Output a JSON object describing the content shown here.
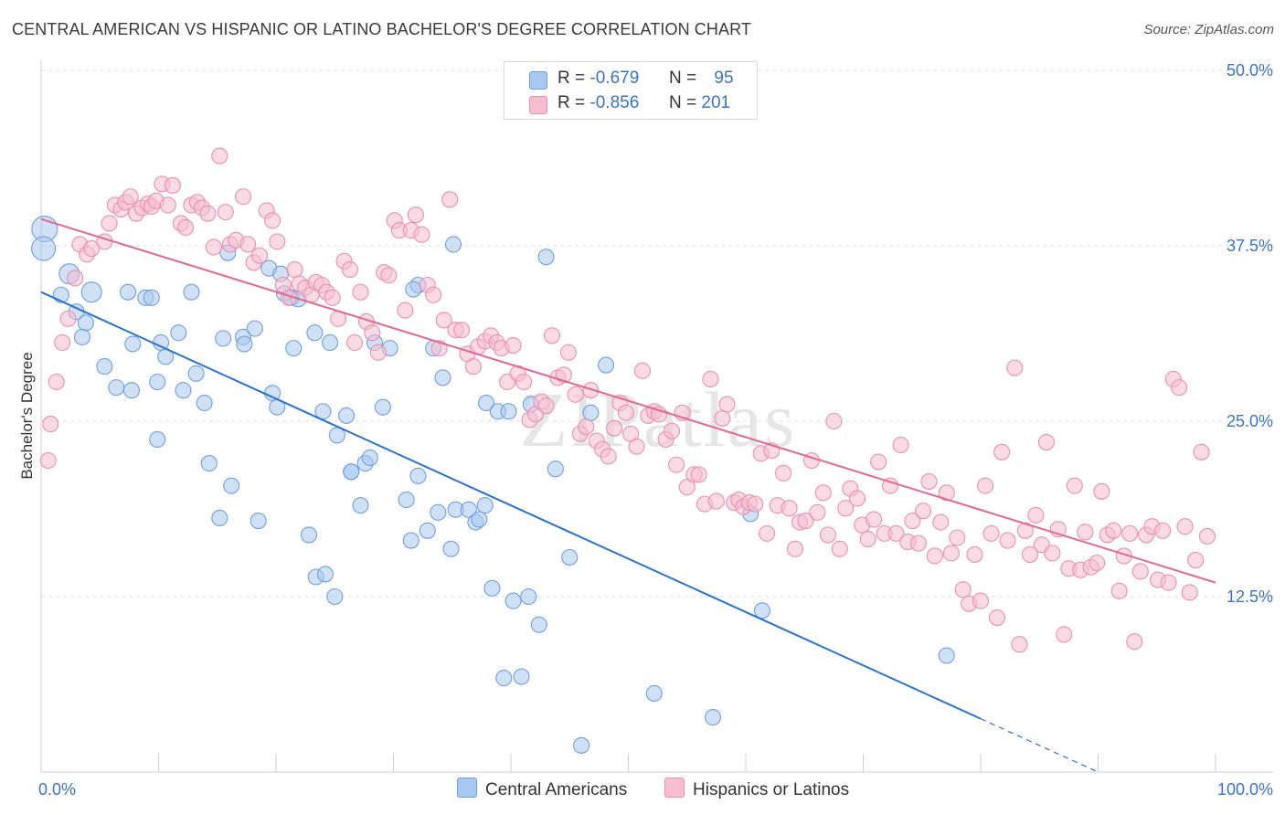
{
  "title": "CENTRAL AMERICAN VS HISPANIC OR LATINO BACHELOR'S DEGREE CORRELATION CHART",
  "source": "Source: ZipAtlas.com",
  "watermark": "ZIPatlas",
  "colors": {
    "blue_fill": "#a9c8ef",
    "blue_stroke": "#6f9fdc",
    "blue_line": "#2a72d0",
    "pink_fill": "#f6bed0",
    "pink_stroke": "#ea8fae",
    "pink_line": "#e2688f",
    "tick_text": "#3b73c6",
    "grid": "#dddddd"
  },
  "legend": {
    "rows": [
      {
        "r_label": "R =",
        "r_value": "-0.679",
        "n_label": "N =",
        "n_value": "95"
      },
      {
        "r_label": "R =",
        "r_value": "-0.856",
        "n_label": "N =",
        "n_value": "201"
      }
    ]
  },
  "bottom_legend": [
    "Central Americans",
    "Hispanics or Latinos"
  ],
  "chart_data": {
    "type": "scatter",
    "title": "CENTRAL AMERICAN VS HISPANIC OR LATINO BACHELOR'S DEGREE CORRELATION CHART",
    "xlabel": "",
    "ylabel": "Bachelor's Degree",
    "xlim": [
      0,
      100
    ],
    "ylim": [
      0,
      50
    ],
    "x_tick_labels": [
      "0.0%",
      "100.0%"
    ],
    "y_ticks": [
      12.5,
      25.0,
      37.5,
      50.0
    ],
    "y_tick_labels": [
      "12.5%",
      "25.0%",
      "37.5%",
      "50.0%"
    ],
    "grid": true,
    "legend_position": "top-center",
    "series": [
      {
        "name": "Central Americans",
        "r": -0.679,
        "n": 95,
        "trend": {
          "x0": 0,
          "y0": 34.2,
          "x1": 80,
          "y1": 3.8,
          "dash_to_x": 90
        },
        "points": [
          [
            0.3,
            38.7
          ],
          [
            0.2,
            37.3
          ],
          [
            2.4,
            35.5
          ],
          [
            4.3,
            34.2
          ],
          [
            1.7,
            34.0
          ],
          [
            3.0,
            32.8
          ],
          [
            3.8,
            32.0
          ],
          [
            3.5,
            31.0
          ],
          [
            7.4,
            34.2
          ],
          [
            8.9,
            33.8
          ],
          [
            9.4,
            33.8
          ],
          [
            12.8,
            34.2
          ],
          [
            11.7,
            31.3
          ],
          [
            7.8,
            30.5
          ],
          [
            10.2,
            30.6
          ],
          [
            10.6,
            29.6
          ],
          [
            5.4,
            28.9
          ],
          [
            13.2,
            28.4
          ],
          [
            7.7,
            27.2
          ],
          [
            6.4,
            27.4
          ],
          [
            9.9,
            27.8
          ],
          [
            12.1,
            27.2
          ],
          [
            13.9,
            26.3
          ],
          [
            9.9,
            23.7
          ],
          [
            14.3,
            22.0
          ],
          [
            16.2,
            20.4
          ],
          [
            15.2,
            18.1
          ],
          [
            18.5,
            17.9
          ],
          [
            15.5,
            30.9
          ],
          [
            17.2,
            31.0
          ],
          [
            18.2,
            31.6
          ],
          [
            17.3,
            30.5
          ],
          [
            19.4,
            35.9
          ],
          [
            20.4,
            35.5
          ],
          [
            20.7,
            34.1
          ],
          [
            21.3,
            33.8
          ],
          [
            15.9,
            37.0
          ],
          [
            19.7,
            27.0
          ],
          [
            20.1,
            26.0
          ],
          [
            21.5,
            30.2
          ],
          [
            21.9,
            33.7
          ],
          [
            23.3,
            31.3
          ],
          [
            24.6,
            30.6
          ],
          [
            22.8,
            16.9
          ],
          [
            23.4,
            13.9
          ],
          [
            24.2,
            14.1
          ],
          [
            25.0,
            12.5
          ],
          [
            24.0,
            25.7
          ],
          [
            25.2,
            24.0
          ],
          [
            26.0,
            25.4
          ],
          [
            26.4,
            21.4
          ],
          [
            27.2,
            19.0
          ],
          [
            27.6,
            22.0
          ],
          [
            28.0,
            22.4
          ],
          [
            29.1,
            26.0
          ],
          [
            28.4,
            30.6
          ],
          [
            29.7,
            30.2
          ],
          [
            31.1,
            19.4
          ],
          [
            31.5,
            16.5
          ],
          [
            32.1,
            21.1
          ],
          [
            32.1,
            34.7
          ],
          [
            32.9,
            17.2
          ],
          [
            33.4,
            30.2
          ],
          [
            33.8,
            18.5
          ],
          [
            34.2,
            28.1
          ],
          [
            34.9,
            15.9
          ],
          [
            35.3,
            18.7
          ],
          [
            36.4,
            18.7
          ],
          [
            37.0,
            17.8
          ],
          [
            37.3,
            18.0
          ],
          [
            37.8,
            19.0
          ],
          [
            35.1,
            37.6
          ],
          [
            37.9,
            26.3
          ],
          [
            38.4,
            13.1
          ],
          [
            38.9,
            25.7
          ],
          [
            39.8,
            25.7
          ],
          [
            39.4,
            6.7
          ],
          [
            40.2,
            12.2
          ],
          [
            40.9,
            6.8
          ],
          [
            41.5,
            12.5
          ],
          [
            41.7,
            26.2
          ],
          [
            42.4,
            10.5
          ],
          [
            43.0,
            36.7
          ],
          [
            43.8,
            21.6
          ],
          [
            45.0,
            15.3
          ],
          [
            46.0,
            1.9
          ],
          [
            48.1,
            29.0
          ],
          [
            52.2,
            5.6
          ],
          [
            57.2,
            3.9
          ],
          [
            60.4,
            18.4
          ],
          [
            61.4,
            11.5
          ],
          [
            77.1,
            8.3
          ],
          [
            46.8,
            25.6
          ],
          [
            31.7,
            34.4
          ],
          [
            26.4,
            21.4
          ]
        ]
      },
      {
        "name": "Hispanics or Latinos",
        "r": -0.856,
        "n": 201,
        "trend": {
          "x0": 0,
          "y0": 39.4,
          "x1": 100,
          "y1": 13.5
        },
        "points": [
          [
            0.6,
            22.2
          ],
          [
            0.8,
            24.8
          ],
          [
            1.3,
            27.8
          ],
          [
            1.8,
            30.6
          ],
          [
            2.3,
            32.3
          ],
          [
            2.9,
            35.2
          ],
          [
            3.3,
            37.6
          ],
          [
            3.9,
            36.9
          ],
          [
            4.3,
            37.3
          ],
          [
            5.4,
            37.8
          ],
          [
            5.8,
            39.1
          ],
          [
            6.3,
            40.4
          ],
          [
            6.8,
            40.1
          ],
          [
            7.2,
            40.6
          ],
          [
            7.6,
            41.0
          ],
          [
            8.1,
            39.8
          ],
          [
            8.6,
            40.2
          ],
          [
            9.1,
            40.5
          ],
          [
            9.4,
            40.3
          ],
          [
            9.8,
            40.7
          ],
          [
            10.3,
            41.9
          ],
          [
            10.8,
            40.4
          ],
          [
            11.2,
            41.8
          ],
          [
            11.9,
            39.1
          ],
          [
            12.3,
            38.8
          ],
          [
            12.8,
            40.4
          ],
          [
            13.3,
            40.6
          ],
          [
            13.7,
            40.2
          ],
          [
            14.2,
            39.8
          ],
          [
            14.7,
            37.4
          ],
          [
            15.2,
            43.9
          ],
          [
            15.7,
            39.9
          ],
          [
            16.1,
            37.6
          ],
          [
            16.6,
            37.9
          ],
          [
            17.2,
            41.0
          ],
          [
            17.6,
            37.6
          ],
          [
            18.1,
            36.3
          ],
          [
            18.6,
            36.8
          ],
          [
            19.2,
            40.0
          ],
          [
            19.7,
            39.3
          ],
          [
            20.1,
            37.8
          ],
          [
            20.6,
            34.7
          ],
          [
            21.1,
            33.8
          ],
          [
            21.6,
            35.8
          ],
          [
            22.0,
            34.8
          ],
          [
            22.5,
            34.5
          ],
          [
            23.0,
            34.0
          ],
          [
            23.4,
            34.9
          ],
          [
            23.9,
            34.7
          ],
          [
            24.3,
            34.2
          ],
          [
            24.8,
            33.8
          ],
          [
            25.3,
            32.3
          ],
          [
            25.8,
            36.4
          ],
          [
            26.3,
            35.8
          ],
          [
            26.7,
            30.6
          ],
          [
            27.2,
            34.2
          ],
          [
            27.7,
            32.1
          ],
          [
            28.2,
            31.3
          ],
          [
            28.7,
            29.9
          ],
          [
            29.2,
            35.6
          ],
          [
            29.6,
            35.4
          ],
          [
            30.1,
            39.3
          ],
          [
            30.5,
            38.6
          ],
          [
            31.0,
            32.9
          ],
          [
            31.5,
            38.6
          ],
          [
            31.9,
            39.7
          ],
          [
            32.4,
            38.3
          ],
          [
            32.9,
            34.7
          ],
          [
            33.4,
            34.0
          ],
          [
            33.9,
            30.2
          ],
          [
            34.3,
            32.2
          ],
          [
            34.8,
            40.8
          ],
          [
            35.3,
            31.5
          ],
          [
            35.8,
            31.5
          ],
          [
            36.3,
            29.8
          ],
          [
            36.8,
            28.9
          ],
          [
            37.2,
            30.3
          ],
          [
            37.8,
            30.7
          ],
          [
            38.3,
            31.1
          ],
          [
            38.8,
            30.6
          ],
          [
            39.2,
            30.2
          ],
          [
            39.7,
            27.8
          ],
          [
            40.2,
            30.4
          ],
          [
            40.6,
            28.4
          ],
          [
            41.1,
            27.8
          ],
          [
            41.6,
            25.1
          ],
          [
            42.1,
            25.5
          ],
          [
            42.6,
            26.4
          ],
          [
            43.0,
            26.1
          ],
          [
            43.5,
            31.1
          ],
          [
            44.0,
            28.1
          ],
          [
            44.5,
            28.3
          ],
          [
            44.9,
            29.9
          ],
          [
            45.5,
            26.9
          ],
          [
            45.9,
            24.1
          ],
          [
            46.4,
            24.6
          ],
          [
            46.8,
            27.2
          ],
          [
            47.3,
            23.6
          ],
          [
            47.8,
            23.0
          ],
          [
            48.3,
            22.5
          ],
          [
            48.8,
            24.5
          ],
          [
            49.3,
            26.3
          ],
          [
            49.8,
            25.6
          ],
          [
            50.2,
            24.1
          ],
          [
            50.7,
            23.2
          ],
          [
            51.2,
            28.6
          ],
          [
            51.7,
            25.4
          ],
          [
            52.2,
            25.7
          ],
          [
            52.6,
            25.5
          ],
          [
            53.2,
            23.7
          ],
          [
            53.7,
            24.3
          ],
          [
            54.1,
            21.9
          ],
          [
            54.6,
            25.6
          ],
          [
            55.0,
            20.3
          ],
          [
            55.6,
            21.2
          ],
          [
            56.0,
            21.2
          ],
          [
            56.5,
            19.1
          ],
          [
            57.0,
            28.0
          ],
          [
            57.5,
            19.3
          ],
          [
            58.0,
            25.2
          ],
          [
            58.4,
            26.2
          ],
          [
            59.0,
            19.2
          ],
          [
            59.4,
            19.4
          ],
          [
            59.8,
            18.9
          ],
          [
            60.3,
            19.2
          ],
          [
            60.8,
            19.1
          ],
          [
            61.3,
            22.7
          ],
          [
            61.8,
            17.0
          ],
          [
            62.2,
            22.9
          ],
          [
            62.7,
            19.0
          ],
          [
            63.2,
            21.3
          ],
          [
            63.7,
            18.8
          ],
          [
            64.2,
            15.9
          ],
          [
            64.6,
            17.8
          ],
          [
            65.1,
            17.9
          ],
          [
            65.6,
            22.2
          ],
          [
            66.1,
            18.5
          ],
          [
            66.6,
            19.9
          ],
          [
            67.0,
            16.9
          ],
          [
            67.5,
            25.0
          ],
          [
            68.0,
            15.9
          ],
          [
            68.5,
            18.8
          ],
          [
            68.9,
            20.2
          ],
          [
            69.5,
            19.5
          ],
          [
            69.9,
            17.6
          ],
          [
            70.4,
            16.6
          ],
          [
            70.9,
            18.0
          ],
          [
            71.3,
            22.1
          ],
          [
            71.8,
            17.0
          ],
          [
            72.3,
            20.4
          ],
          [
            72.8,
            17.0
          ],
          [
            73.2,
            23.3
          ],
          [
            73.8,
            16.4
          ],
          [
            74.2,
            17.9
          ],
          [
            74.7,
            16.3
          ],
          [
            75.1,
            18.6
          ],
          [
            75.6,
            20.7
          ],
          [
            76.1,
            15.4
          ],
          [
            76.6,
            17.8
          ],
          [
            77.1,
            19.9
          ],
          [
            77.5,
            15.6
          ],
          [
            78.0,
            16.7
          ],
          [
            78.5,
            13.0
          ],
          [
            79.0,
            12.0
          ],
          [
            79.5,
            15.5
          ],
          [
            80.0,
            12.2
          ],
          [
            80.4,
            20.4
          ],
          [
            80.9,
            17.0
          ],
          [
            81.4,
            11.0
          ],
          [
            81.8,
            22.8
          ],
          [
            82.3,
            16.5
          ],
          [
            82.9,
            28.8
          ],
          [
            83.3,
            9.1
          ],
          [
            83.8,
            17.2
          ],
          [
            84.2,
            15.5
          ],
          [
            84.7,
            18.3
          ],
          [
            85.2,
            16.2
          ],
          [
            85.6,
            23.5
          ],
          [
            86.1,
            15.6
          ],
          [
            86.6,
            17.3
          ],
          [
            87.1,
            9.8
          ],
          [
            87.5,
            14.5
          ],
          [
            88.0,
            20.4
          ],
          [
            88.5,
            14.4
          ],
          [
            88.9,
            17.1
          ],
          [
            89.4,
            14.6
          ],
          [
            89.9,
            14.9
          ],
          [
            90.3,
            20.0
          ],
          [
            90.8,
            16.9
          ],
          [
            91.3,
            17.2
          ],
          [
            91.8,
            12.9
          ],
          [
            92.2,
            15.4
          ],
          [
            92.7,
            17.0
          ],
          [
            93.1,
            9.3
          ],
          [
            93.6,
            14.3
          ],
          [
            94.1,
            16.9
          ],
          [
            94.6,
            17.5
          ],
          [
            95.1,
            13.7
          ],
          [
            95.5,
            17.2
          ],
          [
            96.0,
            13.5
          ],
          [
            96.4,
            28.0
          ],
          [
            96.9,
            27.4
          ],
          [
            97.4,
            17.5
          ],
          [
            97.8,
            12.8
          ],
          [
            98.3,
            15.1
          ],
          [
            98.8,
            22.8
          ],
          [
            99.3,
            16.8
          ]
        ]
      }
    ]
  }
}
